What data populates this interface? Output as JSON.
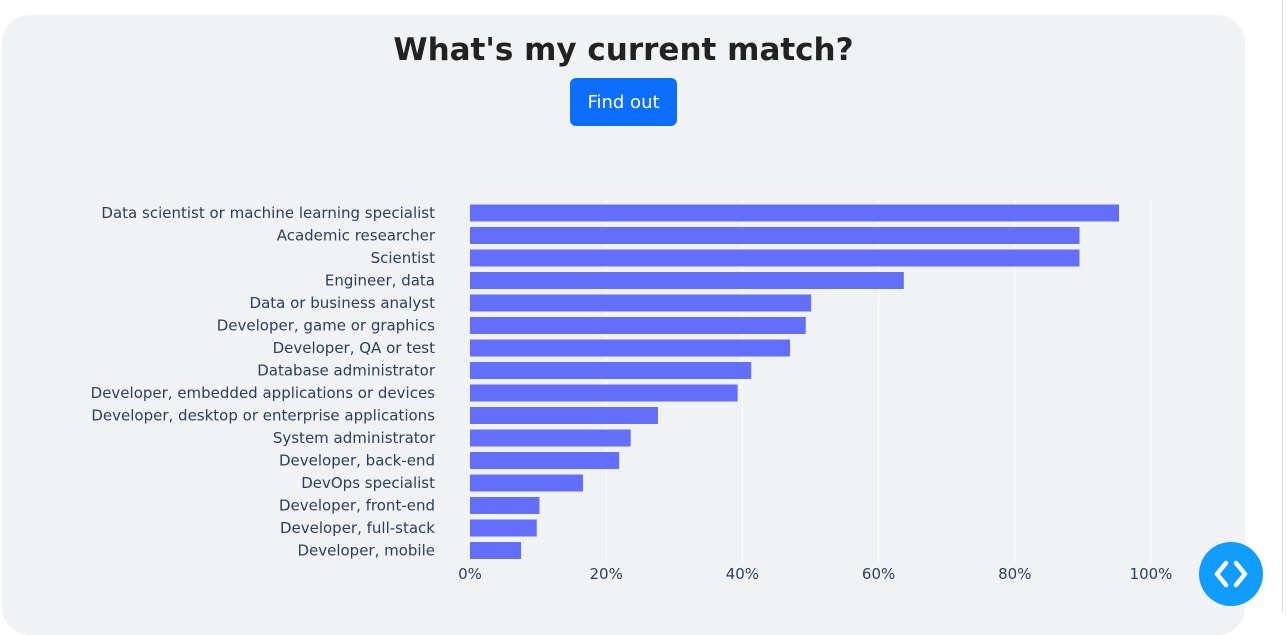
{
  "header": {
    "title": "What's my current match?",
    "button_label": "Find out"
  },
  "colors": {
    "bar": "#636efa",
    "button": "#0d6efd",
    "fab": "#119dff",
    "grid": "#ffffff",
    "text": "#2a3f5f"
  },
  "fab": {
    "icon": "code-brackets-icon"
  },
  "chart_data": {
    "type": "bar",
    "orientation": "horizontal",
    "title": "",
    "xlabel": "",
    "ylabel": "",
    "xlim": [
      0,
      100
    ],
    "x_ticks": [
      0,
      20,
      40,
      60,
      80,
      100
    ],
    "x_tick_labels": [
      "0%",
      "20%",
      "40%",
      "60%",
      "80%",
      "100%"
    ],
    "grid": true,
    "categories": [
      "Data scientist or machine learning specialist",
      "Academic researcher",
      "Scientist",
      "Engineer, data",
      "Data or business analyst",
      "Developer, game or graphics",
      "Developer, QA or test",
      "Database administrator",
      "Developer, embedded applications or devices",
      "Developer, desktop or enterprise applications",
      "System administrator",
      "Developer, back-end",
      "DevOps specialist",
      "Developer, front-end",
      "Developer, full-stack",
      "Developer, mobile"
    ],
    "values": [
      95.3,
      89.5,
      89.5,
      63.7,
      50.1,
      49.3,
      47.0,
      41.3,
      39.3,
      27.6,
      23.6,
      21.9,
      16.6,
      10.2,
      9.8,
      7.5
    ]
  }
}
